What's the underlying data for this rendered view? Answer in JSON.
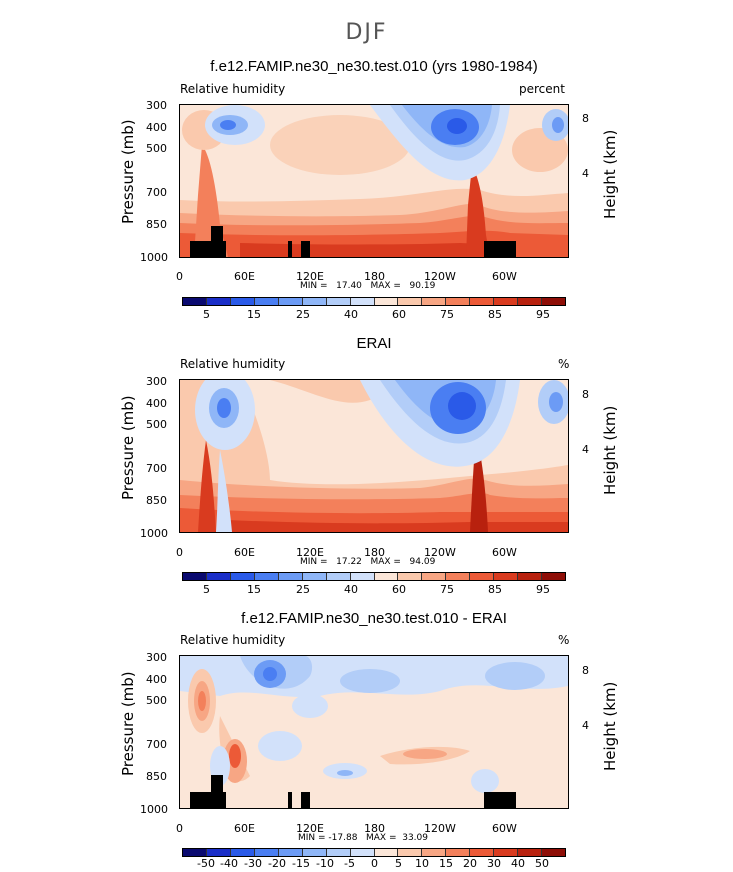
{
  "season": "DJF",
  "chart_data": [
    {
      "type": "heatmap",
      "title": "f.e12.FAMIP.ne30_ne30.test.010 (yrs 1980-1984)",
      "variable_label": "Relative humidity",
      "units": "percent",
      "ylabel": "Pressure (mb)",
      "ylabel_right": "Height (km)",
      "x_ticks": [
        "0",
        "60E",
        "120E",
        "180",
        "120W",
        "60W"
      ],
      "y_ticks": [
        "300",
        "400",
        "500",
        "700",
        "850",
        "1000"
      ],
      "y_ticks_right": [
        "8",
        "4"
      ],
      "ylim": [
        1000,
        300
      ],
      "min_max_text": "MIN =   17.40   MAX =   90.19",
      "min": 17.4,
      "max": 90.19,
      "colorbar_labels": [
        "5",
        "15",
        "25",
        "40",
        "60",
        "75",
        "85",
        "95"
      ]
    },
    {
      "type": "heatmap",
      "title": "ERAI",
      "variable_label": "Relative humidity",
      "units": "%",
      "ylabel": "Pressure (mb)",
      "ylabel_right": "Height (km)",
      "x_ticks": [
        "0",
        "60E",
        "120E",
        "180",
        "120W",
        "60W"
      ],
      "y_ticks": [
        "300",
        "400",
        "500",
        "700",
        "850",
        "1000"
      ],
      "y_ticks_right": [
        "8",
        "4"
      ],
      "ylim": [
        1000,
        300
      ],
      "min_max_text": "MIN =   17.22   MAX =   94.09",
      "min": 17.22,
      "max": 94.09,
      "colorbar_labels": [
        "5",
        "15",
        "25",
        "40",
        "60",
        "75",
        "85",
        "95"
      ]
    },
    {
      "type": "heatmap",
      "title": "f.e12.FAMIP.ne30_ne30.test.010 - ERAI",
      "variable_label": "Relative humidity",
      "units": "%",
      "ylabel": "Pressure (mb)",
      "ylabel_right": "Height (km)",
      "x_ticks": [
        "0",
        "60E",
        "120E",
        "180",
        "120W",
        "60W"
      ],
      "y_ticks": [
        "300",
        "400",
        "500",
        "700",
        "850",
        "1000"
      ],
      "y_ticks_right": [
        "8",
        "4"
      ],
      "ylim": [
        1000,
        300
      ],
      "min_max_text": "MIN = -17.88   MAX =  33.09",
      "min": -17.88,
      "max": 33.09,
      "colorbar_labels": [
        "-50",
        "-40",
        "-30",
        "-20",
        "-15",
        "-10",
        "-5",
        "0",
        "5",
        "10",
        "15",
        "20",
        "30",
        "40",
        "50"
      ]
    }
  ],
  "colors": {
    "abs_scale": [
      "#0a0a70",
      "#1a2ec8",
      "#2a5ae8",
      "#4a7ef2",
      "#6c9bf5",
      "#8fb6f7",
      "#b2cdf8",
      "#d2e1fa",
      "#fbe6d8",
      "#fac9ad",
      "#f7a684",
      "#f3805b",
      "#ec5a37",
      "#d93b1f",
      "#b8210e",
      "#8e0e07"
    ],
    "diff_scale": [
      "#0a0a70",
      "#1a2ec8",
      "#2a5ae8",
      "#4a7ef2",
      "#6c9bf5",
      "#8fb6f7",
      "#b2cdf8",
      "#d2e1fa",
      "#fbe6d8",
      "#fac9ad",
      "#f7a684",
      "#f3805b",
      "#ec5a37",
      "#d93b1f",
      "#b8210e",
      "#8e0e07"
    ],
    "topography": "#000000"
  }
}
